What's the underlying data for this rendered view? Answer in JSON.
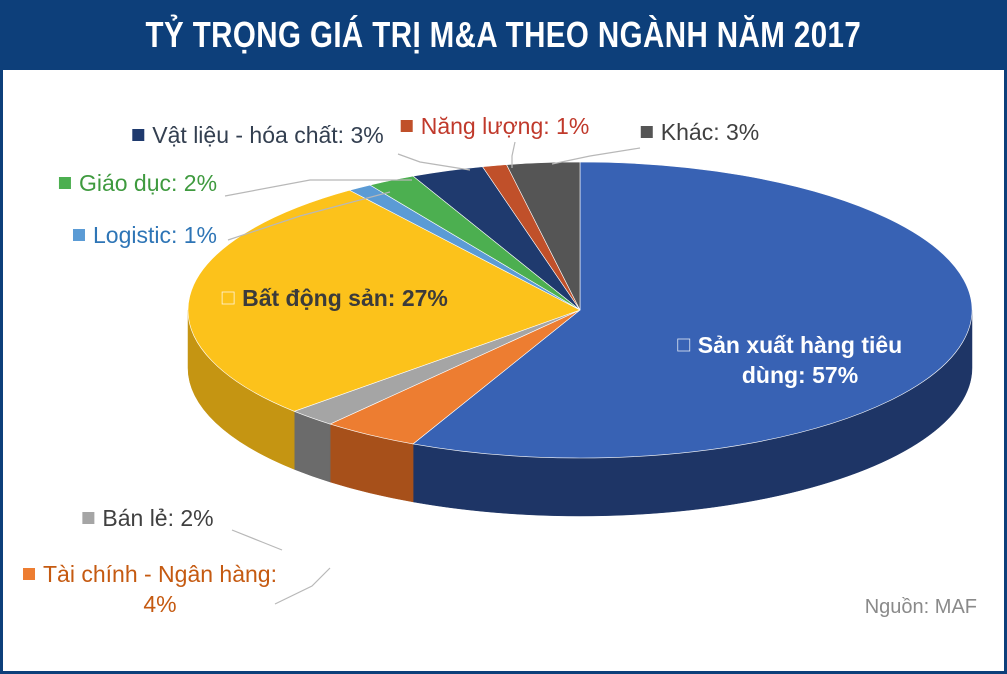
{
  "title": "TỶ TRỌNG GIÁ TRỊ M&A THEO NGÀNH NĂM 2017",
  "source": "Nguồn: MAF",
  "chart_data": {
    "type": "pie",
    "title": "TỶ TRỌNG GIÁ TRỊ M&A THEO NGÀNH NĂM 2017",
    "slices": [
      {
        "label": "Sản xuất hàng tiêu dùng: 57%",
        "name": "Sản xuất hàng tiêu dùng",
        "value": 57,
        "color": "#3862b4",
        "side": "#1e3566",
        "label_color": "#ffffff",
        "inside": true,
        "lines": [
          "Sản xuất hàng tiêu",
          "dùng: 57%"
        ]
      },
      {
        "label": "Tài chính - Ngân hàng: 4%",
        "name": "Tài chính - Ngân hàng",
        "value": 4,
        "color": "#ed7d31",
        "side": "#a7501a",
        "label_color": "#c55a11",
        "inside": false,
        "lines": [
          "Tài chính - Ngân hàng:",
          "4%"
        ]
      },
      {
        "label": "Bán lẻ: 2%",
        "name": "Bán lẻ",
        "value": 2,
        "color": "#a5a5a5",
        "side": "#6b6b6b",
        "label_color": "#404040",
        "inside": false,
        "lines": [
          "Bán lẻ: 2%"
        ]
      },
      {
        "label": "Bất động sản: 27%",
        "name": "Bất động sản",
        "value": 27,
        "color": "#fcc21b",
        "side": "#c59512",
        "label_color": "#3b3b3b",
        "inside": true,
        "lines": [
          "Bất động sản: 27%"
        ]
      },
      {
        "label": "Logistic: 1%",
        "name": "Logistic",
        "value": 1,
        "color": "#5b9bd5",
        "side": "#3d6d9c",
        "label_color": "#2e75b6",
        "inside": false,
        "lines": [
          "Logistic: 1%"
        ]
      },
      {
        "label": "Giáo dục: 2%",
        "name": "Giáo dục",
        "value": 2,
        "color": "#4caf50",
        "side": "#2f7a32",
        "label_color": "#3f9a3f",
        "inside": false,
        "lines": [
          "Giáo dục: 2%"
        ]
      },
      {
        "label": "Vật liệu - hóa chất: 3%",
        "name": "Vật liệu - hóa chất",
        "value": 3,
        "color": "#1f3a6e",
        "side": "#11213f",
        "label_color": "#333f50",
        "inside": false,
        "lines": [
          "Vật liệu - hóa chất: 3%"
        ]
      },
      {
        "label": "Năng lượng: 1%",
        "name": "Năng lượng",
        "value": 1,
        "color": "#c0502a",
        "side": "#7e3218",
        "label_color": "#c0392b",
        "inside": false,
        "lines": [
          "Năng lượng: 1%"
        ]
      },
      {
        "label": "Khác: 3%",
        "name": "Khác",
        "value": 3,
        "color": "#555555",
        "side": "#333333",
        "label_color": "#404040",
        "inside": false,
        "lines": [
          "Khác: 3%"
        ]
      }
    ]
  }
}
